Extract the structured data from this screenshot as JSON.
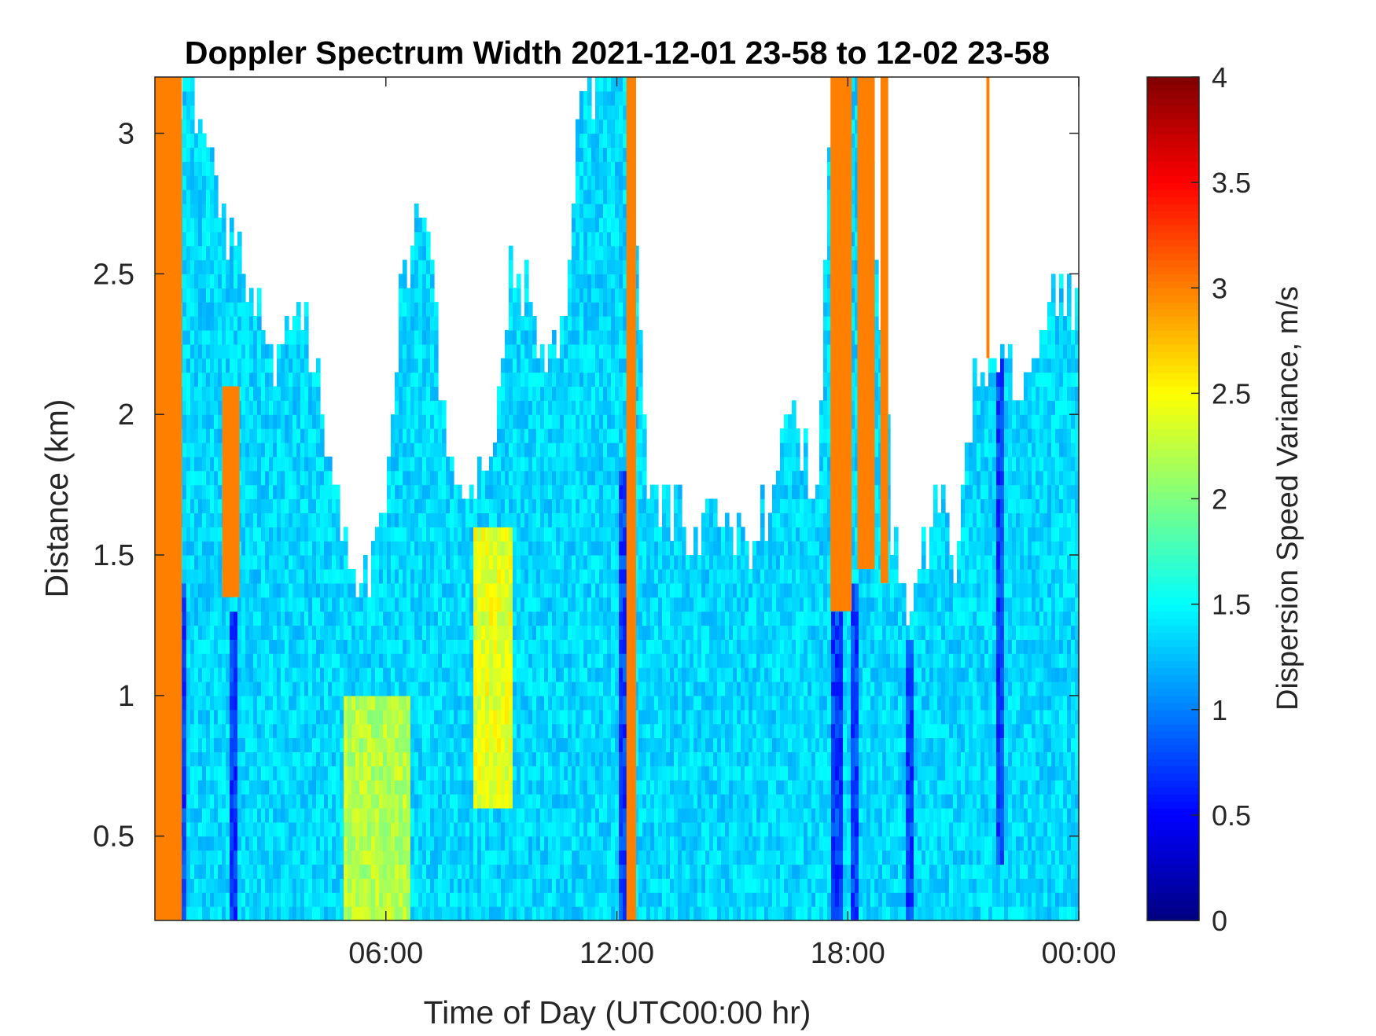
{
  "chart_data": {
    "type": "heatmap",
    "title": "Doppler Spectrum Width 2021-12-01 23-58 to 12-02 23-58",
    "xlabel": "Time of Day (UTC00:00 hr)",
    "ylabel": "Distance (km)",
    "colorbar_label": "Dispersion Speed Variance, m/s",
    "colormap": "jet",
    "xlim_hours": [
      0,
      24
    ],
    "ylim_km": [
      0.2,
      3.2
    ],
    "clim": [
      0,
      4
    ],
    "x_ticks": [
      {
        "value": 6,
        "label": "06:00"
      },
      {
        "value": 12,
        "label": "12:00"
      },
      {
        "value": 18,
        "label": "18:00"
      },
      {
        "value": 24,
        "label": "00:00"
      }
    ],
    "y_ticks": [
      {
        "value": 0.5,
        "label": "0.5"
      },
      {
        "value": 1,
        "label": "1"
      },
      {
        "value": 1.5,
        "label": "1.5"
      },
      {
        "value": 2,
        "label": "2"
      },
      {
        "value": 2.5,
        "label": "2.5"
      },
      {
        "value": 3,
        "label": "3"
      }
    ],
    "colorbar_ticks": [
      {
        "value": 0,
        "label": "0"
      },
      {
        "value": 0.5,
        "label": "0.5"
      },
      {
        "value": 1,
        "label": "1"
      },
      {
        "value": 1.5,
        "label": "1.5"
      },
      {
        "value": 2,
        "label": "2"
      },
      {
        "value": 2.5,
        "label": "2.5"
      },
      {
        "value": 3,
        "label": "3"
      },
      {
        "value": 3.5,
        "label": "3.5"
      },
      {
        "value": 4,
        "label": "4"
      }
    ],
    "background_value": 1.35,
    "data_top_km": [
      {
        "t": 0.0,
        "top": 3.2
      },
      {
        "t": 0.6,
        "top": 3.2
      },
      {
        "t": 1.2,
        "top": 3.0
      },
      {
        "t": 2.0,
        "top": 2.6
      },
      {
        "t": 2.6,
        "top": 2.4
      },
      {
        "t": 3.2,
        "top": 2.2
      },
      {
        "t": 3.8,
        "top": 2.4
      },
      {
        "t": 4.2,
        "top": 2.1
      },
      {
        "t": 4.8,
        "top": 1.7
      },
      {
        "t": 5.3,
        "top": 1.3
      },
      {
        "t": 5.8,
        "top": 1.5
      },
      {
        "t": 6.4,
        "top": 2.4
      },
      {
        "t": 7.0,
        "top": 2.8
      },
      {
        "t": 7.5,
        "top": 2.0
      },
      {
        "t": 8.1,
        "top": 1.7
      },
      {
        "t": 8.8,
        "top": 1.8
      },
      {
        "t": 9.3,
        "top": 2.6
      },
      {
        "t": 10.0,
        "top": 2.3
      },
      {
        "t": 10.6,
        "top": 2.2
      },
      {
        "t": 11.0,
        "top": 3.0
      },
      {
        "t": 11.5,
        "top": 3.2
      },
      {
        "t": 12.2,
        "top": 3.2
      },
      {
        "t": 12.8,
        "top": 1.8
      },
      {
        "t": 13.3,
        "top": 1.7
      },
      {
        "t": 14.0,
        "top": 1.6
      },
      {
        "t": 14.8,
        "top": 1.7
      },
      {
        "t": 15.4,
        "top": 1.45
      },
      {
        "t": 16.1,
        "top": 1.8
      },
      {
        "t": 16.7,
        "top": 2.0
      },
      {
        "t": 17.2,
        "top": 1.6
      },
      {
        "t": 17.6,
        "top": 3.2
      },
      {
        "t": 18.5,
        "top": 3.2
      },
      {
        "t": 19.2,
        "top": 1.5
      },
      {
        "t": 19.8,
        "top": 1.3
      },
      {
        "t": 20.3,
        "top": 1.8
      },
      {
        "t": 20.8,
        "top": 1.5
      },
      {
        "t": 21.3,
        "top": 2.1
      },
      {
        "t": 21.8,
        "top": 2.25
      },
      {
        "t": 22.4,
        "top": 2.1
      },
      {
        "t": 23.0,
        "top": 2.35
      },
      {
        "t": 23.5,
        "top": 2.5
      },
      {
        "t": 24.0,
        "top": 2.4
      }
    ],
    "orange_bands": [
      {
        "t0": 0.0,
        "t1": 0.7,
        "bottom_km": 0.2,
        "top_km": 3.2,
        "value": 3.0
      },
      {
        "t0": 1.75,
        "t1": 2.2,
        "bottom_km": 1.35,
        "top_km": 2.1,
        "value": 3.0
      },
      {
        "t0": 12.25,
        "t1": 12.5,
        "bottom_km": 0.2,
        "top_km": 3.2,
        "value": 3.0
      },
      {
        "t0": 17.55,
        "t1": 18.1,
        "bottom_km": 1.3,
        "top_km": 3.2,
        "value": 3.0
      },
      {
        "t0": 18.25,
        "t1": 18.7,
        "bottom_km": 1.45,
        "top_km": 3.2,
        "value": 3.0
      },
      {
        "t0": 18.85,
        "t1": 19.05,
        "bottom_km": 1.4,
        "top_km": 3.2,
        "value": 3.0
      },
      {
        "t0": 21.6,
        "t1": 21.68,
        "bottom_km": 2.2,
        "top_km": 3.2,
        "value": 3.0
      }
    ],
    "yellow_zones": [
      {
        "t0": 4.9,
        "t1": 6.6,
        "bottom_km": 0.2,
        "top_km": 1.0,
        "value": 2.2
      },
      {
        "t0": 8.3,
        "t1": 9.3,
        "bottom_km": 0.6,
        "top_km": 1.6,
        "value": 2.4
      }
    ],
    "dark_streaks": [
      {
        "t": 0.68,
        "bottom_km": 0.2,
        "top_km": 1.4
      },
      {
        "t": 2.05,
        "bottom_km": 0.2,
        "top_km": 1.3
      },
      {
        "t": 12.15,
        "bottom_km": 0.2,
        "top_km": 1.8
      },
      {
        "t": 17.7,
        "bottom_km": 0.2,
        "top_km": 1.3
      },
      {
        "t": 18.15,
        "bottom_km": 0.2,
        "top_km": 1.4
      },
      {
        "t": 19.6,
        "bottom_km": 0.2,
        "top_km": 1.2
      },
      {
        "t": 21.95,
        "bottom_km": 0.4,
        "top_km": 2.2
      }
    ]
  }
}
